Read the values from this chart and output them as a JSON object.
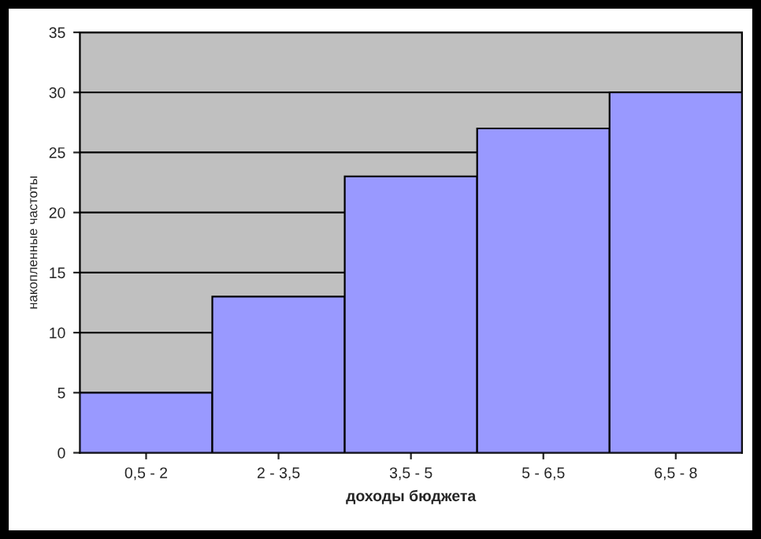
{
  "chart_data": {
    "type": "bar",
    "xlabel": "доходы бюджета",
    "ylabel": "накопленные частоты",
    "categories": [
      "0,5 - 2",
      "2 - 3,5",
      "3,5 - 5",
      "5 - 6,5",
      "6,5 - 8"
    ],
    "values": [
      5,
      13,
      23,
      27,
      30
    ],
    "color": "#9999ff",
    "ylim": [
      0,
      35
    ],
    "yticks": [
      0,
      5,
      10,
      15,
      20,
      25,
      30,
      35
    ],
    "grid": "y"
  }
}
